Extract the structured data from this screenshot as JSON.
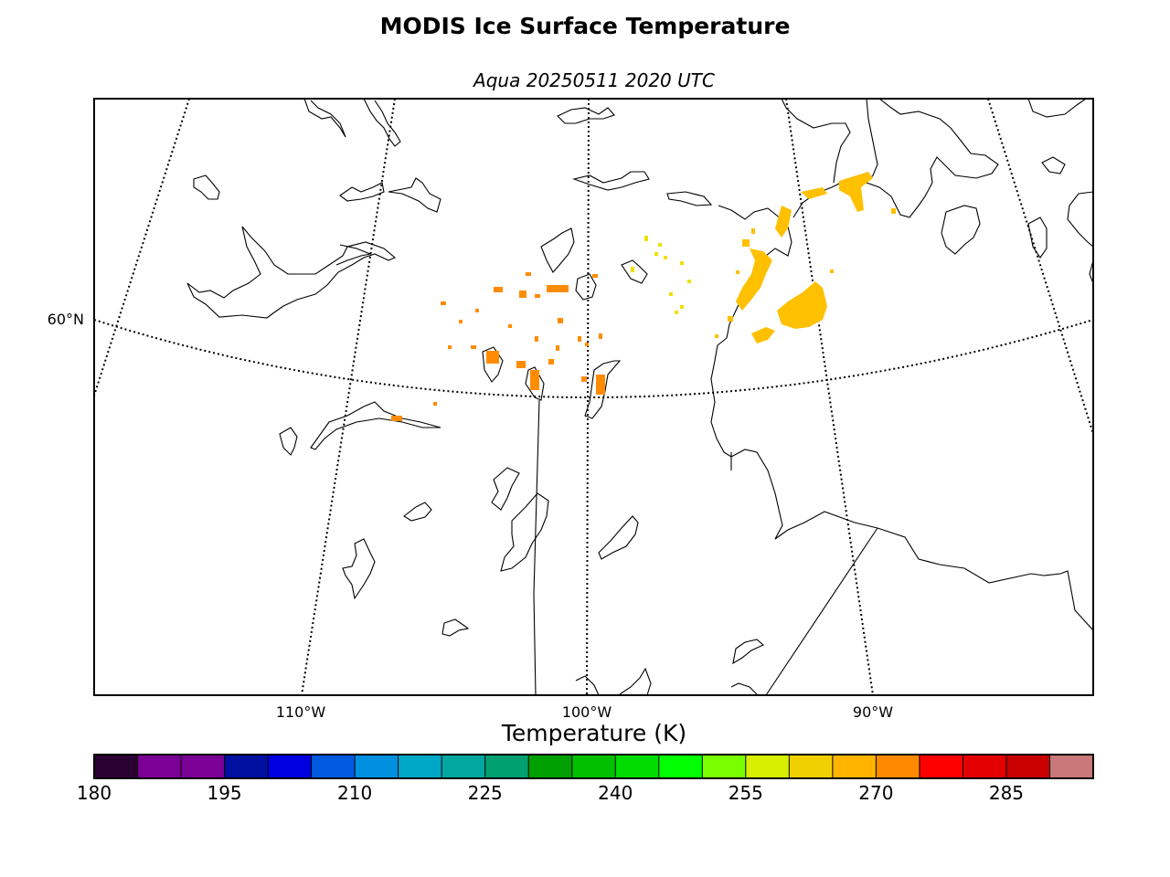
{
  "title": "MODIS Ice Surface Temperature",
  "subtitle": "Aqua 20250511 2020 UTC",
  "map": {
    "latitude_labels": [
      "60°N"
    ],
    "longitude_labels": [
      "110°W",
      "100°W",
      "90°W"
    ]
  },
  "colorbar": {
    "label": "Temperature (K)",
    "ticks": [
      "180",
      "195",
      "210",
      "225",
      "240",
      "255",
      "270",
      "285"
    ],
    "range": [
      180,
      295
    ],
    "step": 5,
    "colors": [
      "#2a0033",
      "#7a0096",
      "#7a0096",
      "#0010a0",
      "#0000e0",
      "#005ae0",
      "#0090e0",
      "#00a8c8",
      "#00a8a0",
      "#00a070",
      "#00a000",
      "#00c000",
      "#00dc00",
      "#00ff00",
      "#78ff00",
      "#d8f000",
      "#f0d000",
      "#ffb400",
      "#ff8a00",
      "#ff0000",
      "#e40000",
      "#c80000",
      "#c87878"
    ]
  },
  "ice_colors": {
    "orange": "#ff8c00",
    "gold": "#ffc000",
    "yellow": "#f0e000"
  }
}
